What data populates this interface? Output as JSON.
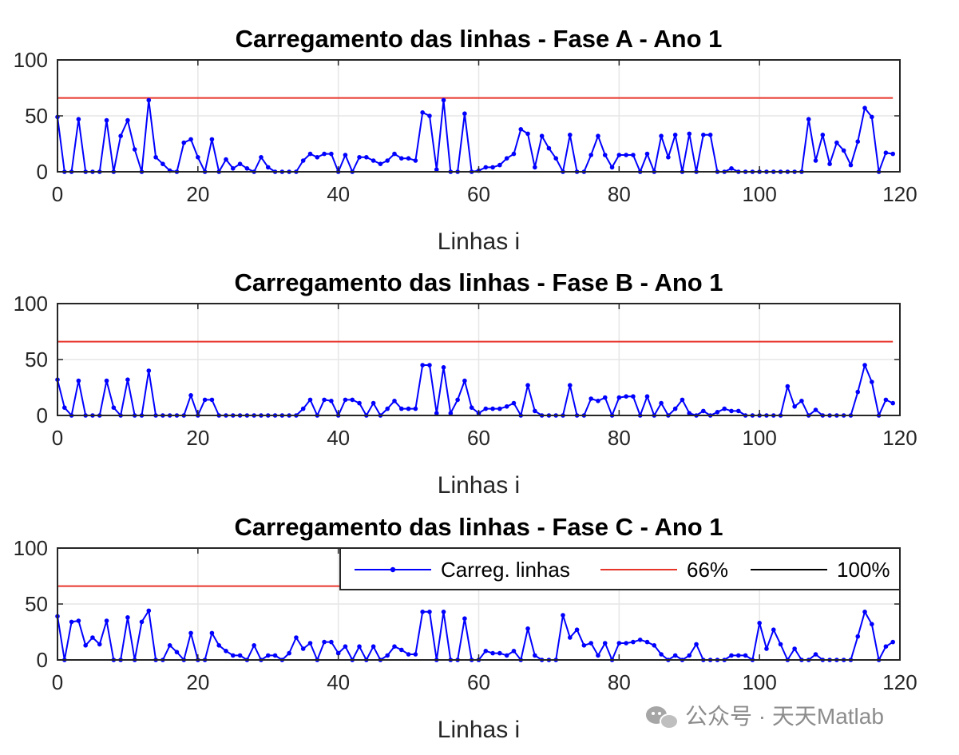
{
  "watermark": "公众号 · 天天Matlab",
  "colors": {
    "series": "#0000ff",
    "ref66": "#e8352a",
    "ref100": "#000000",
    "grid": "#e6e6e6",
    "axis": "#262626"
  },
  "chart_data": [
    {
      "type": "line",
      "title": "Carregamento das linhas - Fase A - Ano 1",
      "xlabel": "Linhas i",
      "ylabel": "",
      "xlim": [
        0,
        120
      ],
      "ylim": [
        0,
        100
      ],
      "xticks": [
        "0",
        "20",
        "40",
        "60",
        "80",
        "100",
        "120"
      ],
      "yticks": [
        "0",
        "50",
        "100"
      ],
      "grid": true,
      "x_start": 0,
      "series": [
        {
          "name": "Carreg. linhas",
          "marker": "dot",
          "values": [
            49,
            0,
            0,
            47,
            0,
            0,
            0,
            46,
            0,
            32,
            46,
            20,
            0,
            64,
            13,
            7,
            1,
            0,
            26,
            29,
            13,
            0,
            29,
            0,
            11,
            3,
            7,
            3,
            0,
            13,
            4,
            0,
            0,
            0,
            0,
            10,
            16,
            13,
            16,
            16,
            0,
            15,
            0,
            13,
            13,
            10,
            7,
            10,
            16,
            12,
            12,
            10,
            53,
            50,
            2,
            64,
            0,
            0,
            52,
            0,
            1,
            4,
            4,
            6,
            12,
            16,
            38,
            34,
            4,
            32,
            21,
            12,
            0,
            33,
            0,
            0,
            15,
            32,
            15,
            4,
            15,
            15,
            15,
            0,
            16,
            0,
            32,
            13,
            33,
            0,
            34,
            0,
            33,
            33,
            0,
            0,
            3,
            0,
            0,
            0,
            0,
            0,
            0,
            0,
            0,
            0,
            0,
            47,
            10,
            33,
            7,
            26,
            19,
            6,
            27,
            57,
            49,
            0,
            17,
            16
          ]
        },
        {
          "name": "66%",
          "values": [
            66,
            66
          ]
        },
        {
          "name": "100%",
          "values": [
            100,
            100
          ]
        }
      ]
    },
    {
      "type": "line",
      "title": "Carregamento das linhas - Fase B - Ano 1",
      "xlabel": "Linhas i",
      "ylabel": "",
      "xlim": [
        0,
        120
      ],
      "ylim": [
        0,
        100
      ],
      "xticks": [
        "0",
        "20",
        "40",
        "60",
        "80",
        "100",
        "120"
      ],
      "yticks": [
        "0",
        "50",
        "100"
      ],
      "grid": true,
      "x_start": 0,
      "series": [
        {
          "name": "Carreg. linhas",
          "marker": "dot",
          "values": [
            32,
            7,
            0,
            31,
            0,
            0,
            0,
            31,
            7,
            0,
            32,
            0,
            0,
            40,
            0,
            0,
            0,
            0,
            0,
            18,
            0,
            14,
            14,
            0,
            0,
            0,
            0,
            0,
            0,
            0,
            0,
            0,
            0,
            0,
            0,
            6,
            14,
            0,
            14,
            13,
            0,
            14,
            14,
            11,
            0,
            11,
            0,
            6,
            13,
            6,
            6,
            6,
            45,
            45,
            2,
            43,
            2,
            14,
            31,
            7,
            2,
            6,
            6,
            6,
            8,
            11,
            0,
            27,
            4,
            0,
            0,
            0,
            0,
            27,
            0,
            0,
            15,
            13,
            16,
            0,
            16,
            17,
            17,
            0,
            17,
            0,
            11,
            0,
            6,
            14,
            2,
            0,
            4,
            0,
            3,
            6,
            4,
            4,
            0,
            0,
            0,
            0,
            0,
            0,
            26,
            8,
            13,
            0,
            5,
            0,
            0,
            0,
            0,
            0,
            21,
            45,
            30,
            0,
            14,
            11
          ]
        },
        {
          "name": "66%",
          "values": [
            66,
            66
          ]
        },
        {
          "name": "100%",
          "values": [
            100,
            100
          ]
        }
      ]
    },
    {
      "type": "line",
      "title": "Carregamento das linhas - Fase C - Ano 1",
      "xlabel": "Linhas i",
      "ylabel": "",
      "xlim": [
        0,
        120
      ],
      "ylim": [
        0,
        100
      ],
      "xticks": [
        "0",
        "20",
        "40",
        "60",
        "80",
        "100",
        "120"
      ],
      "yticks": [
        "0",
        "50",
        "100"
      ],
      "grid": true,
      "x_start": 0,
      "legend": {
        "placement": "top-right",
        "orientation": "horizontal"
      },
      "series": [
        {
          "name": "Carreg. linhas",
          "marker": "dot",
          "values": [
            39,
            0,
            34,
            35,
            13,
            20,
            14,
            35,
            0,
            0,
            38,
            0,
            34,
            44,
            0,
            0,
            13,
            7,
            0,
            24,
            0,
            0,
            24,
            13,
            8,
            4,
            4,
            0,
            13,
            0,
            4,
            4,
            0,
            6,
            20,
            10,
            15,
            0,
            16,
            16,
            6,
            12,
            0,
            12,
            0,
            12,
            0,
            4,
            12,
            9,
            5,
            5,
            43,
            43,
            0,
            43,
            0,
            0,
            37,
            0,
            0,
            8,
            6,
            6,
            4,
            8,
            0,
            28,
            4,
            0,
            0,
            0,
            40,
            20,
            27,
            13,
            15,
            4,
            15,
            0,
            15,
            15,
            16,
            18,
            16,
            13,
            5,
            0,
            4,
            0,
            4,
            14,
            0,
            0,
            0,
            0,
            4,
            4,
            4,
            0,
            33,
            10,
            27,
            14,
            0,
            10,
            0,
            0,
            5,
            0,
            0,
            0,
            0,
            0,
            21,
            43,
            32,
            0,
            12,
            16
          ]
        },
        {
          "name": "66%",
          "values": [
            66,
            66
          ]
        },
        {
          "name": "100%",
          "values": [
            100,
            100
          ]
        }
      ]
    }
  ]
}
